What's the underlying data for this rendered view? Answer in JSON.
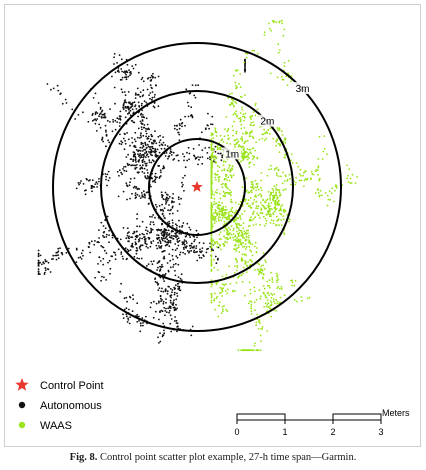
{
  "chart_data": {
    "type": "scatter",
    "title": "",
    "xlabel": "",
    "ylabel": "",
    "control_point": {
      "name": "Control Point",
      "x": 0,
      "y": 0,
      "color": "#e8382e"
    },
    "series": [
      {
        "name": "Autonomous",
        "color": "#111111",
        "center": [
          -0.8,
          0.0
        ],
        "spread_m": [
          0.95,
          1.7
        ],
        "x_range_m": [
          -3.3,
          1.0
        ],
        "y_range_m": [
          -4.0,
          3.3
        ]
      },
      {
        "name": "WAAS",
        "color": "#9be31c",
        "center": [
          1.1,
          -0.3
        ],
        "spread_m": [
          0.9,
          1.45
        ],
        "x_range_m": [
          0.3,
          4.0
        ],
        "y_range_m": [
          -3.4,
          3.6
        ]
      }
    ],
    "rings": [
      {
        "radius_m": 1,
        "label": "1m"
      },
      {
        "radius_m": 2,
        "label": "2m"
      },
      {
        "radius_m": 3,
        "label": "3m"
      }
    ],
    "scale_bar": {
      "ticks": [
        "0",
        "1",
        "2",
        "3"
      ],
      "unit": "Meters"
    },
    "legend_position": "bottom-left",
    "grid": false
  },
  "caption": {
    "label": "Fig. 8.",
    "text": "Control point scatter plot example, 27-h time span—Garmin."
  }
}
